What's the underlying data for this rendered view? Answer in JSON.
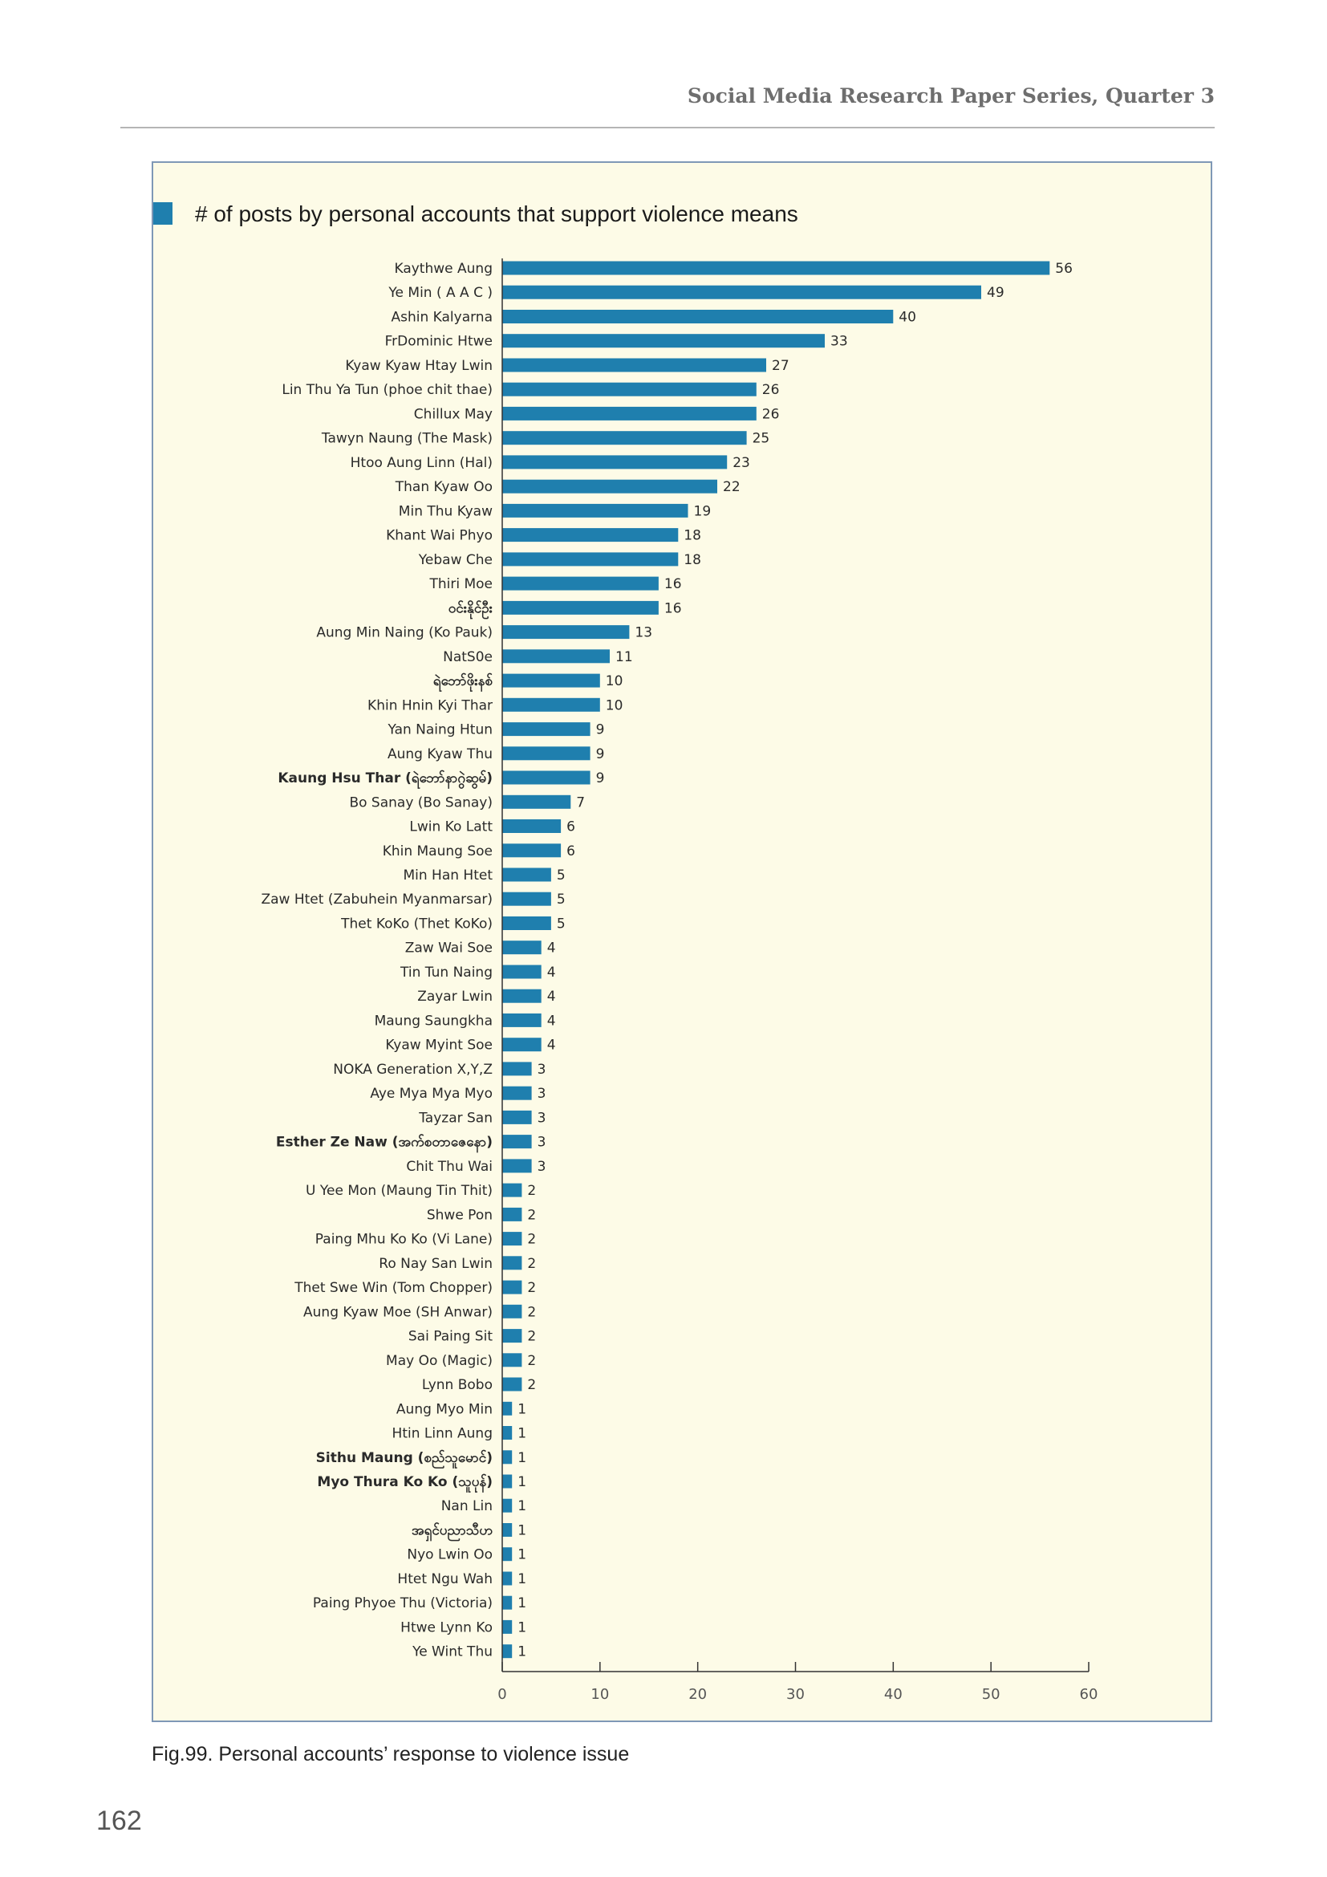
{
  "header": {
    "title": "Social Media Research Paper Series, Quarter 3"
  },
  "caption": "Fig.99. Personal accounts’ response to violence issue",
  "page_number": "162",
  "colors": {
    "bar": "#1f7fae",
    "marker": "#1f7fae",
    "panel_bg": "#fdfbe7",
    "panel_border": "#7f98b6"
  },
  "chart_data": {
    "type": "bar",
    "orientation": "horizontal",
    "title": "# of posts by personal accounts that support violence means",
    "xlim": [
      0,
      60
    ],
    "xticks": [
      0,
      10,
      20,
      30,
      40,
      50,
      60
    ],
    "grid": false,
    "categories": [
      "Kaythwe Aung",
      "Ye Min ( A A C )",
      "Ashin Kalyarna",
      "FrDominic Htwe",
      "Kyaw Kyaw Htay Lwin",
      "Lin Thu Ya Tun (phoe chit thae)",
      "Chillux May",
      "Tawyn Naung (The Mask)",
      "Htoo Aung Linn (Hal)",
      "Than Kyaw Oo",
      "Min Thu Kyaw",
      "Khant Wai Phyo",
      "Yebaw Che",
      "Thiri Moe",
      "ဝင်းနိုင်ဦး",
      "Aung Min Naing (Ko Pauk)",
      "NatS0e",
      "ရဲဘော်ဖိုးနစ်",
      "Khin Hnin Kyi Thar",
      "Yan Naing Htun",
      "Aung Kyaw Thu",
      "Kaung Hsu Thar (ရဲဘော်နာဂွဲဆွမ်)",
      "Bo Sanay (Bo Sanay)",
      "Lwin Ko Latt",
      "Khin Maung Soe",
      "Min Han Htet",
      "Zaw Htet (Zabuhein Myanmarsar)",
      "Thet KoKo (Thet KoKo)",
      "Zaw Wai Soe",
      "Tin Tun Naing",
      "Zayar Lwin",
      "Maung Saungkha",
      "Kyaw Myint Soe",
      "NOKA Generation X,Y,Z",
      "Aye Mya Mya Myo",
      "Tayzar San",
      "Esther Ze Naw (အက်စတာဇေနော)",
      "Chit Thu Wai",
      "U Yee Mon (Maung Tin Thit)",
      "Shwe Pon",
      "Paing Mhu Ko Ko (Vi Lane)",
      "Ro Nay San Lwin",
      "Thet Swe Win (Tom Chopper)",
      "Aung Kyaw Moe (SH Anwar)",
      "Sai Paing Sit",
      "May Oo (Magic)",
      "Lynn Bobo",
      "Aung Myo Min",
      "Htin Linn Aung",
      "Sithu Maung (စည်သူမောင်)",
      "Myo Thura Ko Ko (သူပုန်)",
      "Nan Lin",
      "အရှင်ပညာသီဟ",
      "Nyo Lwin Oo",
      "Htet Ngu Wah",
      "Paing Phyoe Thu (Victoria)",
      "Htwe Lynn Ko",
      "Ye Wint Thu"
    ],
    "values": [
      56,
      49,
      40,
      33,
      27,
      26,
      26,
      25,
      23,
      22,
      19,
      18,
      18,
      16,
      16,
      13,
      11,
      10,
      10,
      9,
      9,
      9,
      7,
      6,
      6,
      5,
      5,
      5,
      4,
      4,
      4,
      4,
      4,
      3,
      3,
      3,
      3,
      3,
      2,
      2,
      2,
      2,
      2,
      2,
      2,
      2,
      2,
      1,
      1,
      1,
      1,
      1,
      1,
      1,
      1,
      1,
      1,
      1
    ],
    "bold_categories": [
      14,
      17,
      21,
      36,
      49,
      50,
      52
    ]
  }
}
